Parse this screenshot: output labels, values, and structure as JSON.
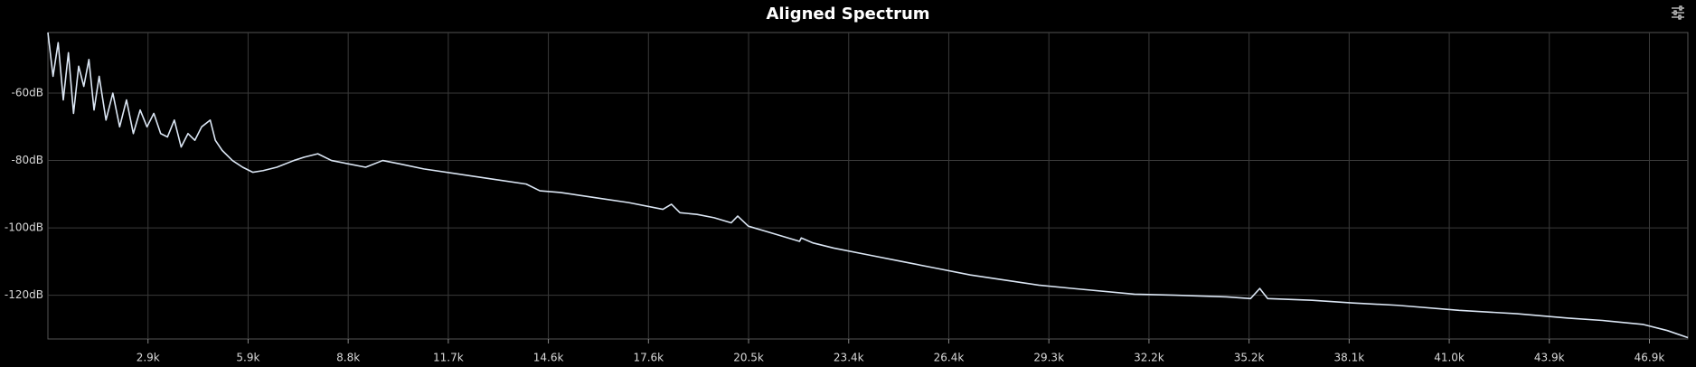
{
  "chart_data": {
    "type": "line",
    "title": "Aligned Spectrum",
    "x": [
      0,
      150,
      300,
      450,
      600,
      750,
      900,
      1050,
      1200,
      1350,
      1500,
      1700,
      1900,
      2100,
      2300,
      2500,
      2700,
      2900,
      3100,
      3300,
      3500,
      3700,
      3900,
      4100,
      4300,
      4500,
      4750,
      4900,
      5100,
      5400,
      5700,
      6000,
      6300,
      6700,
      7200,
      7500,
      7900,
      8300,
      8800,
      9300,
      9800,
      10300,
      11000,
      12000,
      13000,
      14000,
      14400,
      15000,
      16000,
      17000,
      18000,
      18250,
      18500,
      19000,
      19500,
      20000,
      20190,
      20500,
      21000,
      22000,
      22050,
      22400,
      23000,
      24000,
      25000,
      26000,
      27000,
      28000,
      29000,
      30000,
      31800,
      33000,
      34500,
      35200,
      35470,
      35700,
      37000,
      38200,
      39500,
      41300,
      43000,
      44500,
      45500,
      46700,
      47400,
      48000
    ],
    "series": [
      {
        "name": "Aligned Spectrum",
        "color": "#dbe6f4",
        "values": [
          -42,
          -55,
          -45,
          -62,
          -48,
          -66,
          -52,
          -58,
          -50,
          -65,
          -55,
          -68,
          -60,
          -70,
          -62,
          -72,
          -65,
          -70,
          -66,
          -72,
          -73,
          -68,
          -76,
          -72,
          -74,
          -70,
          -68,
          -74,
          -77,
          -80,
          -82,
          -83.5,
          -83,
          -82,
          -80,
          -79,
          -78,
          -80,
          -81,
          -82,
          -80,
          -81,
          -82.5,
          -84,
          -85.5,
          -87,
          -89,
          -89.5,
          -91,
          -92.5,
          -94.5,
          -93,
          -95.5,
          -96,
          -97,
          -98.5,
          -96.5,
          -99.5,
          -101,
          -104,
          -103,
          -104.5,
          -106,
          -108,
          -110,
          -112,
          -114,
          -115.5,
          -117,
          -118,
          -119.7,
          -120,
          -120.5,
          -121,
          -118,
          -121,
          -121.5,
          -122.3,
          -123,
          -124.5,
          -125.5,
          -126.8,
          -127.5,
          -128.7,
          -130.5,
          -132.6
        ]
      }
    ],
    "xlim": [
      0,
      48000
    ],
    "ylim": [
      -133,
      -42
    ],
    "xticks": [
      {
        "value": 2930,
        "label": "2.9k"
      },
      {
        "value": 5859,
        "label": "5.9k"
      },
      {
        "value": 8789,
        "label": "8.8k"
      },
      {
        "value": 11719,
        "label": "11.7k"
      },
      {
        "value": 14648,
        "label": "14.6k"
      },
      {
        "value": 17578,
        "label": "17.6k"
      },
      {
        "value": 20508,
        "label": "20.5k"
      },
      {
        "value": 23438,
        "label": "23.4k"
      },
      {
        "value": 26367,
        "label": "26.4k"
      },
      {
        "value": 29297,
        "label": "29.3k"
      },
      {
        "value": 32227,
        "label": "32.2k"
      },
      {
        "value": 35156,
        "label": "35.2k"
      },
      {
        "value": 38086,
        "label": "38.1k"
      },
      {
        "value": 41016,
        "label": "41.0k"
      },
      {
        "value": 43945,
        "label": "43.9k"
      },
      {
        "value": 46875,
        "label": "46.9k"
      }
    ],
    "yticks": [
      {
        "value": -60,
        "label": "-60dB"
      },
      {
        "value": -80,
        "label": "-80dB"
      },
      {
        "value": -100,
        "label": "-100dB"
      },
      {
        "value": -120,
        "label": "-120dB"
      }
    ],
    "grid": true
  }
}
